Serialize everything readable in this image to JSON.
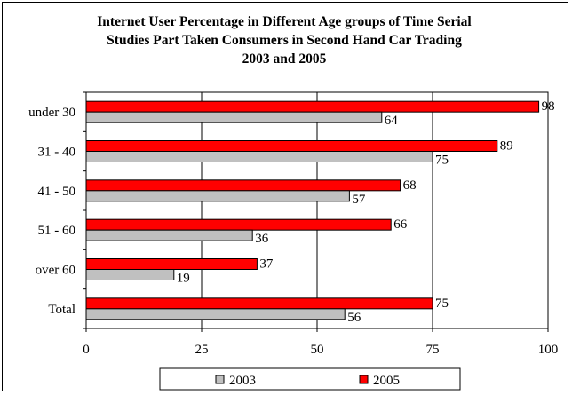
{
  "chart_data": {
    "type": "bar",
    "orientation": "horizontal",
    "title": "Internet User Percentage in Different Age groups of Time Serial Studies Part Taken Consumers in Second Hand Car Trading 2003 and 2005",
    "title_lines": [
      "Internet User Percentage in Different Age groups of Time Serial",
      "Studies Part Taken Consumers in Second Hand Car Trading",
      "2003 and 2005"
    ],
    "categories": [
      "under 30",
      "31 - 40",
      "41 - 50",
      "51 - 60",
      "over 60",
      "Total"
    ],
    "series": [
      {
        "name": "2003",
        "values": [
          64,
          75,
          57,
          36,
          19,
          56
        ],
        "color": "#c0c0c0"
      },
      {
        "name": "2005",
        "values": [
          98,
          89,
          68,
          66,
          37,
          75
        ],
        "color": "#ff0000"
      }
    ],
    "xlim": [
      0,
      100
    ],
    "xticks": [
      "0",
      "25",
      "50",
      "75",
      "100"
    ],
    "xtick_values": [
      0,
      25,
      50,
      75,
      100
    ],
    "grid": "vertical",
    "legend": "bottom"
  }
}
